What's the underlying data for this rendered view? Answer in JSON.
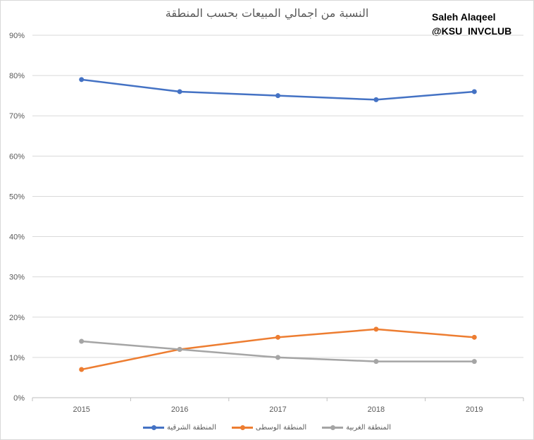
{
  "chart_data": {
    "type": "line",
    "title": "النسبة من اجمالي المبيعات بحسب المنطقة",
    "categories": [
      "2015",
      "2016",
      "2017",
      "2018",
      "2019"
    ],
    "ylim": [
      0,
      90
    ],
    "yticks": [
      "0%",
      "10%",
      "20%",
      "30%",
      "40%",
      "50%",
      "60%",
      "70%",
      "80%",
      "90%"
    ],
    "grid": true,
    "legend_position": "bottom",
    "series": [
      {
        "name": "المنطقة الشرقية",
        "color": "#4472c4",
        "values": [
          79,
          76,
          75,
          74,
          76
        ]
      },
      {
        "name": "المنطقة الوسطى",
        "color": "#ed7d31",
        "values": [
          7,
          12,
          15,
          17,
          15
        ]
      },
      {
        "name": "المنطقة الغربية",
        "color": "#a5a5a5",
        "values": [
          14,
          12,
          10,
          9,
          9
        ]
      }
    ]
  },
  "watermark": {
    "line1": "Saleh Alaqeel",
    "line2": "@KSU_INVCLUB"
  }
}
